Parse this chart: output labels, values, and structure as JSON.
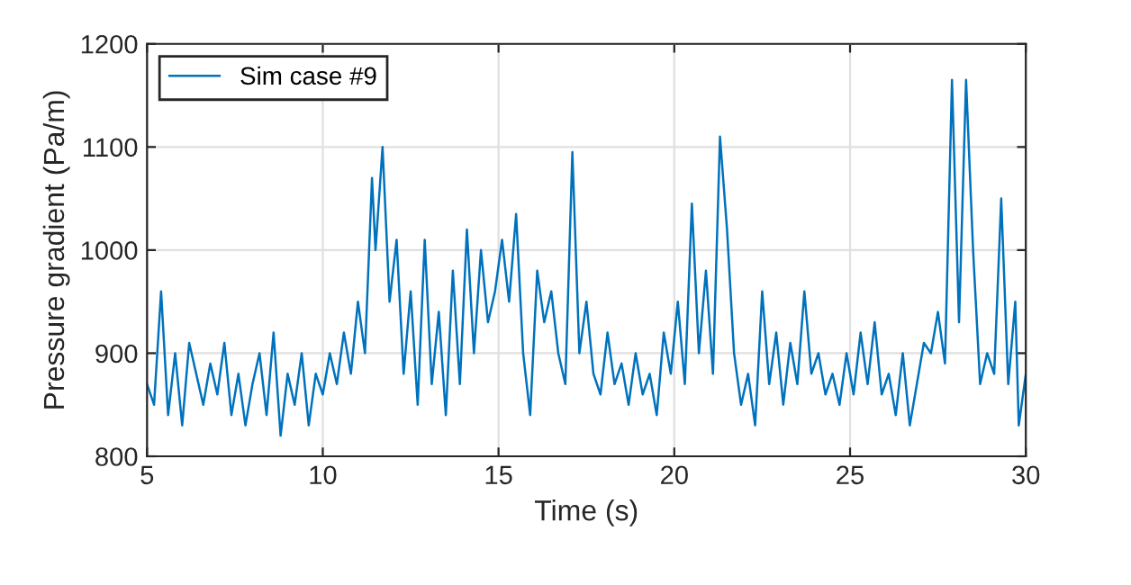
{
  "chart_data": {
    "type": "line",
    "xlabel": "Time (s)",
    "ylabel": "Pressure gradient (Pa/m)",
    "xlim": [
      5,
      30
    ],
    "ylim": [
      800,
      1200
    ],
    "xticks": [
      5,
      10,
      15,
      20,
      25,
      30
    ],
    "yticks": [
      800,
      900,
      1000,
      1100,
      1200
    ],
    "grid": true,
    "legend": "top left",
    "marker": "none",
    "line_style": "solid",
    "series": [
      {
        "name": "Sim case #9",
        "color": "#0072bd",
        "x": [
          5,
          5.2,
          5.4,
          5.6,
          5.8,
          6.0,
          6.2,
          6.4,
          6.6,
          6.8,
          7.0,
          7.2,
          7.4,
          7.6,
          7.8,
          8.0,
          8.2,
          8.4,
          8.6,
          8.8,
          9.0,
          9.2,
          9.4,
          9.6,
          9.8,
          10.0,
          10.2,
          10.4,
          10.6,
          10.8,
          11.0,
          11.2,
          11.4,
          11.5,
          11.7,
          11.9,
          12.1,
          12.3,
          12.5,
          12.7,
          12.9,
          13.1,
          13.3,
          13.5,
          13.7,
          13.9,
          14.1,
          14.3,
          14.5,
          14.7,
          14.9,
          15.1,
          15.3,
          15.5,
          15.7,
          15.9,
          16.1,
          16.3,
          16.5,
          16.7,
          16.9,
          17.1,
          17.3,
          17.5,
          17.7,
          17.9,
          18.1,
          18.3,
          18.5,
          18.7,
          18.9,
          19.1,
          19.3,
          19.5,
          19.7,
          19.9,
          20.1,
          20.3,
          20.5,
          20.7,
          20.9,
          21.1,
          21.3,
          21.5,
          21.7,
          21.9,
          22.1,
          22.3,
          22.5,
          22.7,
          22.9,
          23.1,
          23.3,
          23.5,
          23.7,
          23.9,
          24.1,
          24.3,
          24.5,
          24.7,
          24.9,
          25.1,
          25.3,
          25.5,
          25.7,
          25.9,
          26.1,
          26.3,
          26.5,
          26.7,
          26.9,
          27.1,
          27.3,
          27.5,
          27.7,
          27.9,
          28.1,
          28.3,
          28.5,
          28.7,
          28.9,
          29.1,
          29.3,
          29.5,
          29.7,
          29.8,
          30.0
        ],
        "values": [
          870,
          850,
          960,
          840,
          900,
          830,
          910,
          880,
          850,
          890,
          860,
          910,
          840,
          880,
          830,
          870,
          900,
          840,
          920,
          820,
          880,
          850,
          900,
          830,
          880,
          860,
          900,
          870,
          920,
          880,
          950,
          900,
          1070,
          1000,
          1100,
          950,
          1010,
          880,
          960,
          850,
          1010,
          870,
          940,
          840,
          980,
          870,
          1020,
          900,
          1000,
          930,
          960,
          1010,
          950,
          1035,
          900,
          840,
          980,
          930,
          960,
          900,
          870,
          1095,
          900,
          950,
          880,
          860,
          920,
          870,
          890,
          850,
          900,
          860,
          880,
          840,
          920,
          880,
          950,
          870,
          1045,
          900,
          980,
          880,
          1110,
          1020,
          900,
          850,
          880,
          830,
          960,
          870,
          920,
          850,
          910,
          870,
          960,
          880,
          900,
          860,
          880,
          850,
          900,
          860,
          920,
          870,
          930,
          860,
          880,
          840,
          900,
          830,
          870,
          910,
          900,
          940,
          890,
          1165,
          930,
          1165,
          1000,
          870,
          900,
          880,
          1050,
          870,
          950,
          830,
          880
        ]
      }
    ]
  }
}
